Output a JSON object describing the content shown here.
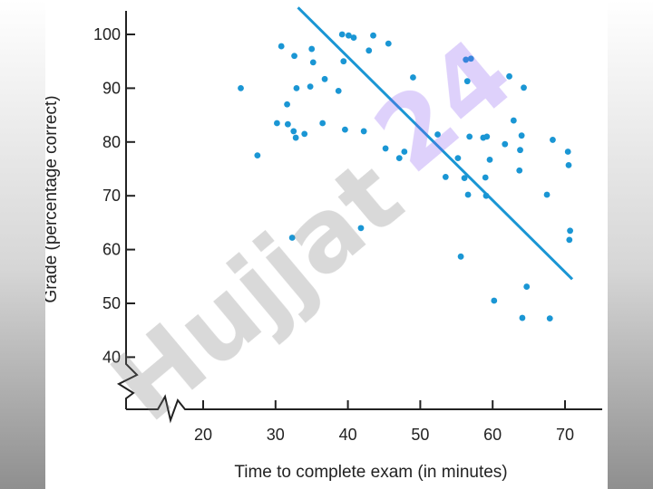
{
  "chart_data": {
    "type": "scatter",
    "xlabel": "Time to complete exam (in minutes)",
    "ylabel": "Grade (percentage correct)",
    "xlim": [
      15,
      71
    ],
    "ylim": [
      40,
      102
    ],
    "x_ticks": [
      20,
      30,
      40,
      50,
      60,
      70
    ],
    "y_ticks": [
      40,
      50,
      60,
      70,
      80,
      90,
      100
    ],
    "axis_breaks": "zigzag on both axes near origin",
    "grid": false,
    "point_color": "#1a96d4",
    "line_color": "#1a96d4",
    "series": [
      {
        "x": [
          25.2,
          27.5,
          30.2,
          30.8,
          31.6,
          31.7,
          32.3,
          32.5,
          32.6,
          32.8,
          32.9,
          34.0,
          34.8,
          35.0,
          35.2,
          36.5,
          36.8,
          38.7,
          39.2,
          39.4,
          39.6,
          40.1,
          40.8,
          41.8,
          42.2,
          42.9,
          43.5,
          45.2,
          45.6,
          47.1,
          47.8,
          49.0,
          52.4,
          53.5,
          55.2,
          55.6,
          56.1,
          56.3,
          56.5,
          56.6,
          56.8,
          57.0,
          58.7,
          59.0,
          59.1,
          59.2,
          59.6,
          60.2,
          61.7,
          62.3,
          62.9,
          63.7,
          63.8,
          64.0,
          64.1,
          64.3,
          64.7,
          67.5,
          67.9,
          68.3,
          70.4,
          70.5,
          70.6,
          70.7
        ],
        "y": [
          90,
          77.5,
          83.5,
          97.8,
          87,
          83.3,
          62.2,
          82,
          96,
          80.8,
          90,
          81.5,
          90.3,
          97.3,
          94.8,
          83.5,
          91.7,
          89.5,
          100,
          95,
          82.3,
          99.8,
          99.4,
          64,
          82,
          97,
          99.8,
          78.8,
          98.3,
          77,
          78.2,
          92,
          81.4,
          73.5,
          77,
          58.7,
          73.3,
          95.3,
          91.3,
          70.2,
          81,
          95.5,
          80.8,
          73.4,
          70,
          81,
          76.7,
          50.5,
          79.6,
          92.2,
          84,
          74.7,
          78.5,
          81.2,
          47.3,
          90.1,
          53.1,
          70.2,
          47.2,
          80.4,
          78.2,
          75.7,
          61.8,
          63.5
        ]
      }
    ],
    "trend_line": {
      "x": [
        33.1,
        71
      ],
      "y": [
        105,
        54.5
      ]
    }
  },
  "watermark": {
    "text": "Hujjat",
    "text2": "24"
  }
}
